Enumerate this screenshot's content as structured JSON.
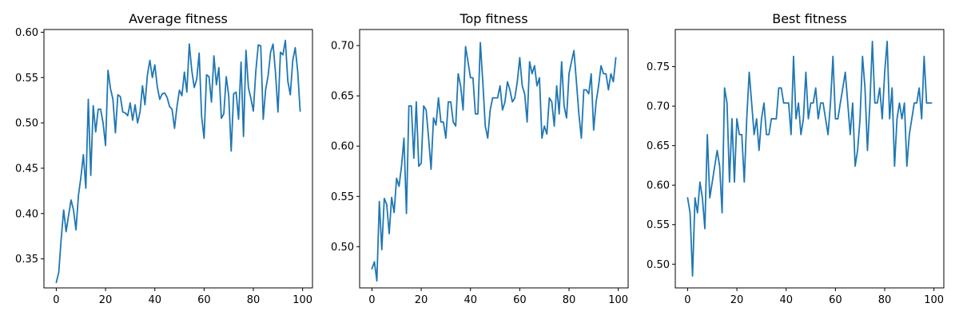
{
  "chart_data": [
    {
      "type": "line",
      "title": "Average fitness",
      "xlabel": "",
      "ylabel": "",
      "xlim": [
        -5,
        104
      ],
      "ylim": [
        0.318,
        0.603
      ],
      "xticks": [
        0,
        20,
        40,
        60,
        80,
        100
      ],
      "xtick_labels": [
        "0",
        "20",
        "40",
        "60",
        "80",
        "100"
      ],
      "yticks": [
        0.35,
        0.4,
        0.45,
        0.5,
        0.55,
        0.6
      ],
      "ytick_labels": [
        "0.35",
        "0.40",
        "0.45",
        "0.50",
        "0.55",
        "0.60"
      ],
      "grid": false,
      "legend": "none",
      "series": [
        {
          "color": "#1f77b4",
          "x": [
            0,
            1,
            2,
            3,
            4,
            5,
            6,
            7,
            8,
            9,
            10,
            11,
            12,
            13,
            14,
            15,
            16,
            17,
            18,
            19,
            20,
            21,
            22,
            23,
            24,
            25,
            26,
            27,
            28,
            29,
            30,
            31,
            32,
            33,
            34,
            35,
            36,
            37,
            38,
            39,
            40,
            41,
            42,
            43,
            44,
            45,
            46,
            47,
            48,
            49,
            50,
            51,
            52,
            53,
            54,
            55,
            56,
            57,
            58,
            59,
            60,
            61,
            62,
            63,
            64,
            65,
            66,
            67,
            68,
            69,
            70,
            71,
            72,
            73,
            74,
            75,
            76,
            77,
            78,
            79,
            80,
            81,
            82,
            83,
            84,
            85,
            86,
            87,
            88,
            89,
            90,
            91,
            92,
            93,
            94,
            95,
            96,
            97,
            98,
            99
          ],
          "values": [
            0.324,
            0.335,
            0.372,
            0.404,
            0.38,
            0.398,
            0.415,
            0.404,
            0.382,
            0.42,
            0.44,
            0.465,
            0.428,
            0.526,
            0.442,
            0.519,
            0.49,
            0.515,
            0.515,
            0.5,
            0.475,
            0.558,
            0.538,
            0.526,
            0.489,
            0.531,
            0.529,
            0.512,
            0.511,
            0.508,
            0.522,
            0.503,
            0.52,
            0.5,
            0.512,
            0.541,
            0.52,
            0.553,
            0.569,
            0.55,
            0.564,
            0.54,
            0.526,
            0.532,
            0.533,
            0.528,
            0.518,
            0.515,
            0.494,
            0.518,
            0.536,
            0.53,
            0.556,
            0.534,
            0.587,
            0.558,
            0.539,
            0.548,
            0.577,
            0.507,
            0.483,
            0.553,
            0.551,
            0.523,
            0.574,
            0.542,
            0.561,
            0.505,
            0.51,
            0.551,
            0.53,
            0.469,
            0.532,
            0.534,
            0.504,
            0.567,
            0.485,
            0.58,
            0.539,
            0.527,
            0.513,
            0.557,
            0.586,
            0.585,
            0.504,
            0.537,
            0.552,
            0.578,
            0.587,
            0.555,
            0.512,
            0.578,
            0.575,
            0.591,
            0.546,
            0.531,
            0.569,
            0.583,
            0.557,
            0.513
          ]
        }
      ]
    },
    {
      "type": "line",
      "title": "Top fitness",
      "xlabel": "",
      "ylabel": "",
      "xlim": [
        -5,
        104
      ],
      "ylim": [
        0.459,
        0.716
      ],
      "xticks": [
        0,
        20,
        40,
        60,
        80,
        100
      ],
      "xtick_labels": [
        "0",
        "20",
        "40",
        "60",
        "80",
        "100"
      ],
      "yticks": [
        0.5,
        0.55,
        0.6,
        0.65,
        0.7
      ],
      "ytick_labels": [
        "0.50",
        "0.55",
        "0.60",
        "0.65",
        "0.70"
      ],
      "grid": false,
      "legend": "none",
      "series": [
        {
          "color": "#1f77b4",
          "x": [
            0,
            1,
            2,
            3,
            4,
            5,
            6,
            7,
            8,
            9,
            10,
            11,
            12,
            13,
            14,
            15,
            16,
            17,
            18,
            19,
            20,
            21,
            22,
            23,
            24,
            25,
            26,
            27,
            28,
            29,
            30,
            31,
            32,
            33,
            34,
            35,
            36,
            37,
            38,
            39,
            40,
            41,
            42,
            43,
            44,
            45,
            46,
            47,
            48,
            49,
            50,
            51,
            52,
            53,
            54,
            55,
            56,
            57,
            58,
            59,
            60,
            61,
            62,
            63,
            64,
            65,
            66,
            67,
            68,
            69,
            70,
            71,
            72,
            73,
            74,
            75,
            76,
            77,
            78,
            79,
            80,
            81,
            82,
            83,
            84,
            85,
            86,
            87,
            88,
            89,
            90,
            91,
            92,
            93,
            94,
            95,
            96,
            97,
            98,
            99
          ],
          "values": [
            0.478,
            0.485,
            0.466,
            0.545,
            0.497,
            0.548,
            0.542,
            0.513,
            0.549,
            0.534,
            0.568,
            0.56,
            0.58,
            0.608,
            0.533,
            0.64,
            0.64,
            0.588,
            0.644,
            0.58,
            0.583,
            0.64,
            0.636,
            0.608,
            0.577,
            0.628,
            0.621,
            0.648,
            0.624,
            0.624,
            0.608,
            0.644,
            0.644,
            0.624,
            0.62,
            0.672,
            0.66,
            0.636,
            0.699,
            0.684,
            0.668,
            0.668,
            0.632,
            0.632,
            0.703,
            0.664,
            0.62,
            0.608,
            0.636,
            0.648,
            0.648,
            0.648,
            0.66,
            0.636,
            0.644,
            0.664,
            0.656,
            0.644,
            0.648,
            0.664,
            0.688,
            0.66,
            0.652,
            0.624,
            0.684,
            0.672,
            0.68,
            0.66,
            0.668,
            0.608,
            0.62,
            0.612,
            0.648,
            0.644,
            0.62,
            0.66,
            0.632,
            0.684,
            0.64,
            0.628,
            0.672,
            0.684,
            0.695,
            0.664,
            0.632,
            0.608,
            0.656,
            0.656,
            0.652,
            0.672,
            0.616,
            0.644,
            0.66,
            0.68,
            0.672,
            0.672,
            0.656,
            0.672,
            0.664,
            0.688
          ]
        }
      ]
    },
    {
      "type": "line",
      "title": "Best fitness",
      "xlabel": "",
      "ylabel": "",
      "xlim": [
        -5,
        104
      ],
      "ylim": [
        0.47,
        0.797
      ],
      "xticks": [
        0,
        20,
        40,
        60,
        80,
        100
      ],
      "xtick_labels": [
        "0",
        "20",
        "40",
        "60",
        "80",
        "100"
      ],
      "yticks": [
        0.5,
        0.55,
        0.6,
        0.65,
        0.7,
        0.75
      ],
      "ytick_labels": [
        "0.50",
        "0.55",
        "0.60",
        "0.65",
        "0.70",
        "0.75"
      ],
      "grid": false,
      "legend": "none",
      "series": [
        {
          "color": "#1f77b4",
          "x": [
            0,
            1,
            2,
            3,
            4,
            5,
            6,
            7,
            8,
            9,
            10,
            11,
            12,
            13,
            14,
            15,
            16,
            17,
            18,
            19,
            20,
            21,
            22,
            23,
            24,
            25,
            26,
            27,
            28,
            29,
            30,
            31,
            32,
            33,
            34,
            35,
            36,
            37,
            38,
            39,
            40,
            41,
            42,
            43,
            44,
            45,
            46,
            47,
            48,
            49,
            50,
            51,
            52,
            53,
            54,
            55,
            56,
            57,
            58,
            59,
            60,
            61,
            62,
            63,
            64,
            65,
            66,
            67,
            68,
            69,
            70,
            71,
            72,
            73,
            74,
            75,
            76,
            77,
            78,
            79,
            80,
            81,
            82,
            83,
            84,
            85,
            86,
            87,
            88,
            89,
            90,
            91,
            92,
            93,
            94,
            95,
            96,
            97,
            98,
            99
          ],
          "values": [
            0.584,
            0.565,
            0.485,
            0.584,
            0.565,
            0.604,
            0.584,
            0.545,
            0.664,
            0.584,
            0.604,
            0.624,
            0.644,
            0.624,
            0.565,
            0.723,
            0.704,
            0.604,
            0.684,
            0.604,
            0.684,
            0.664,
            0.664,
            0.604,
            0.684,
            0.743,
            0.704,
            0.664,
            0.684,
            0.644,
            0.684,
            0.704,
            0.664,
            0.664,
            0.684,
            0.684,
            0.684,
            0.723,
            0.723,
            0.704,
            0.704,
            0.704,
            0.664,
            0.763,
            0.684,
            0.704,
            0.664,
            0.684,
            0.743,
            0.684,
            0.704,
            0.704,
            0.723,
            0.684,
            0.704,
            0.704,
            0.684,
            0.664,
            0.704,
            0.763,
            0.684,
            0.684,
            0.704,
            0.723,
            0.743,
            0.704,
            0.664,
            0.704,
            0.624,
            0.644,
            0.684,
            0.763,
            0.723,
            0.644,
            0.704,
            0.782,
            0.704,
            0.704,
            0.723,
            0.684,
            0.743,
            0.782,
            0.684,
            0.723,
            0.624,
            0.684,
            0.704,
            0.684,
            0.704,
            0.624,
            0.664,
            0.684,
            0.704,
            0.704,
            0.723,
            0.684,
            0.763,
            0.704,
            0.704,
            0.704
          ]
        }
      ]
    }
  ]
}
